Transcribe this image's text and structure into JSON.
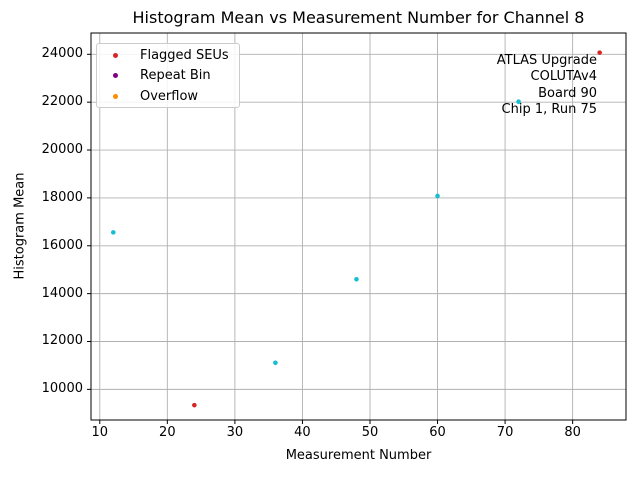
{
  "figure": {
    "background": "#ffffff",
    "text_color": "#000000"
  },
  "chart_data": {
    "type": "scatter",
    "title": "Histogram Mean vs Measurement Number for Channel 8",
    "xlabel": "Measurement Number",
    "ylabel": "Histogram Mean",
    "xlim": [
      8.7,
      87.9
    ],
    "ylim": [
      8720,
      24890
    ],
    "x_ticks": [
      10,
      20,
      30,
      40,
      50,
      60,
      70,
      80
    ],
    "y_ticks": [
      10000,
      12000,
      14000,
      16000,
      18000,
      20000,
      22000,
      24000
    ],
    "grid": true,
    "grid_color": "#b0b0b0",
    "spine_color": "#000000",
    "legend_position": "upper left",
    "legend": {
      "items": [
        {
          "label": "Flagged SEUs",
          "color": "#d62728"
        },
        {
          "label": "Repeat Bin",
          "color": "#800080"
        },
        {
          "label": "Overflow",
          "color": "#ff8c00"
        }
      ]
    },
    "series": [
      {
        "name": "measurements",
        "color": "#17becf",
        "points": [
          [
            12,
            16560
          ],
          [
            36,
            11110
          ],
          [
            48,
            14600
          ],
          [
            60,
            18080
          ],
          [
            72,
            22020
          ]
        ]
      },
      {
        "name": "flagged-seus",
        "color": "#d62728",
        "points": [
          [
            24,
            9340
          ],
          [
            84,
            24070
          ]
        ]
      }
    ],
    "annotation": {
      "lines": [
        "ATLAS Upgrade",
        "COLUTAv4",
        "Board 90",
        "Chip 1, Run 75"
      ]
    }
  }
}
